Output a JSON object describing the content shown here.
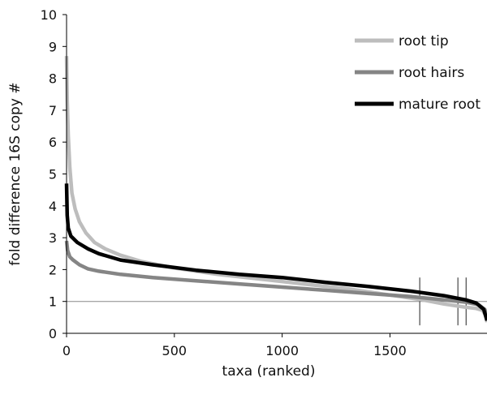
{
  "chart_data": {
    "type": "line",
    "title": "",
    "xlabel": "taxa (ranked)",
    "ylabel": "fold difference 16S copy #",
    "xlim": [
      0,
      1950
    ],
    "ylim": [
      0,
      10
    ],
    "x_ticks": [
      0,
      500,
      1000,
      1500
    ],
    "x_tick_labels": [
      "0",
      "500",
      "1000",
      "1500"
    ],
    "y_ticks": [
      0,
      1,
      2,
      3,
      4,
      5,
      6,
      7,
      8,
      9,
      10
    ],
    "y_tick_labels": [
      "0",
      "1",
      "2",
      "3",
      "4",
      "5",
      "6",
      "7",
      "8",
      "9",
      "10"
    ],
    "grid": false,
    "reference_line": {
      "y": 1,
      "color": "#888888"
    },
    "vertical_markers": [
      1638,
      1815,
      1853
    ],
    "vertical_marker_range": [
      0.25,
      1.75
    ],
    "legend_position": "top-right",
    "series": [
      {
        "name": "root tip",
        "color": "#bdbdbd",
        "points": [
          [
            0,
            8.7
          ],
          [
            3,
            7.3
          ],
          [
            8,
            6.2
          ],
          [
            15,
            5.2
          ],
          [
            25,
            4.4
          ],
          [
            40,
            3.9
          ],
          [
            60,
            3.5
          ],
          [
            90,
            3.15
          ],
          [
            130,
            2.85
          ],
          [
            180,
            2.65
          ],
          [
            250,
            2.45
          ],
          [
            350,
            2.25
          ],
          [
            500,
            2.05
          ],
          [
            700,
            1.85
          ],
          [
            900,
            1.7
          ],
          [
            1100,
            1.55
          ],
          [
            1300,
            1.4
          ],
          [
            1500,
            1.2
          ],
          [
            1650,
            1.05
          ],
          [
            1750,
            0.92
          ],
          [
            1850,
            0.82
          ],
          [
            1900,
            0.78
          ],
          [
            1930,
            0.72
          ],
          [
            1945,
            0.55
          ],
          [
            1950,
            0.35
          ]
        ]
      },
      {
        "name": "root hairs",
        "color": "#858585",
        "points": [
          [
            0,
            2.9
          ],
          [
            5,
            2.6
          ],
          [
            15,
            2.4
          ],
          [
            30,
            2.3
          ],
          [
            60,
            2.15
          ],
          [
            100,
            2.02
          ],
          [
            150,
            1.95
          ],
          [
            250,
            1.85
          ],
          [
            400,
            1.75
          ],
          [
            600,
            1.65
          ],
          [
            800,
            1.55
          ],
          [
            1000,
            1.45
          ],
          [
            1200,
            1.35
          ],
          [
            1400,
            1.25
          ],
          [
            1600,
            1.15
          ],
          [
            1750,
            1.05
          ],
          [
            1850,
            0.98
          ],
          [
            1910,
            0.9
          ],
          [
            1940,
            0.75
          ],
          [
            1950,
            0.45
          ]
        ]
      },
      {
        "name": "mature root",
        "color": "#000000",
        "points": [
          [
            0,
            4.7
          ],
          [
            3,
            3.7
          ],
          [
            8,
            3.3
          ],
          [
            20,
            3.05
          ],
          [
            50,
            2.85
          ],
          [
            100,
            2.65
          ],
          [
            150,
            2.5
          ],
          [
            250,
            2.3
          ],
          [
            400,
            2.15
          ],
          [
            600,
            1.98
          ],
          [
            800,
            1.85
          ],
          [
            1000,
            1.75
          ],
          [
            1200,
            1.6
          ],
          [
            1400,
            1.47
          ],
          [
            1600,
            1.32
          ],
          [
            1750,
            1.18
          ],
          [
            1850,
            1.05
          ],
          [
            1900,
            0.95
          ],
          [
            1935,
            0.75
          ],
          [
            1950,
            0.4
          ]
        ]
      }
    ]
  }
}
